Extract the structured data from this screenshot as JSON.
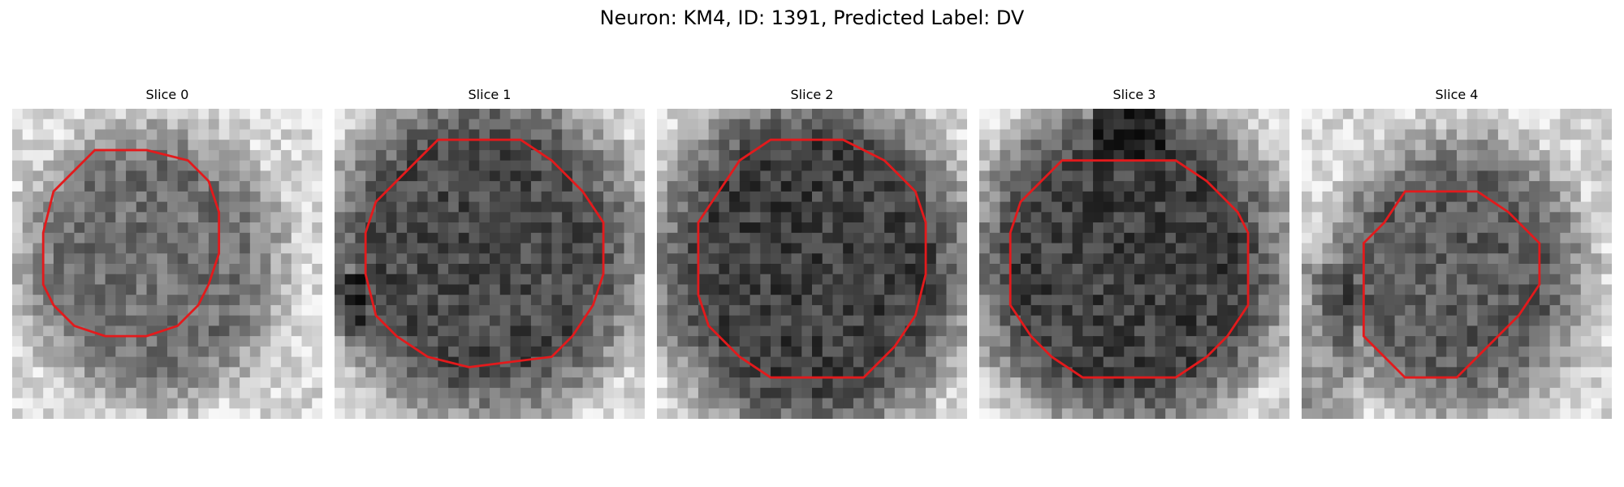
{
  "figure": {
    "title": "Neuron: KM4, ID: 1391, Predicted Label: DV"
  },
  "colors": {
    "contour": "#e31a1c",
    "background_light": "#e6e6e6",
    "cell_dark": "#262626"
  },
  "panels": [
    {
      "title": "Slice 0",
      "cell_darkness": 0.55,
      "contour_fraction": 0.62
    },
    {
      "title": "Slice 1",
      "cell_darkness": 0.75,
      "contour_fraction": 0.8
    },
    {
      "title": "Slice 2",
      "cell_darkness": 0.8,
      "contour_fraction": 0.82
    },
    {
      "title": "Slice 3",
      "cell_darkness": 0.8,
      "contour_fraction": 0.78
    },
    {
      "title": "Slice 4",
      "cell_darkness": 0.65,
      "contour_fraction": 0.62
    }
  ]
}
